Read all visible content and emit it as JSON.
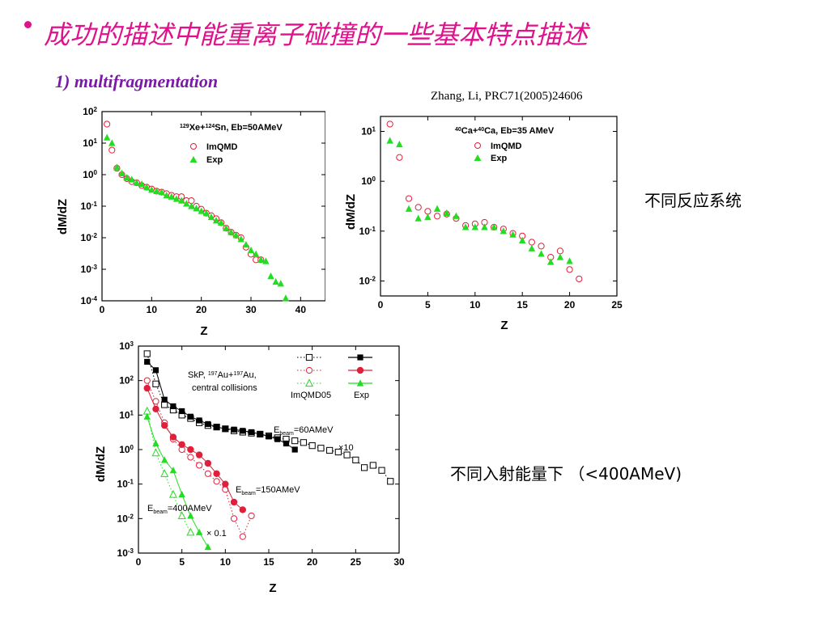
{
  "header": {
    "title": "成功的描述中能重离子碰撞的一些基本特点描述",
    "subtitle": "1) multifragmentation",
    "citation": "Zhang, Li,  PRC71(2005)24606",
    "note_top_right": "不同反应系统",
    "note_bottom_right": "不同入射能量下 （<400AMeV)"
  },
  "colors": {
    "title": "#e0118c",
    "subtitle": "#7a1ba8",
    "imqmd": "#e0203a",
    "exp": "#22dd22",
    "black": "#000000"
  },
  "chart_data": [
    {
      "type": "scatter",
      "title": "129Xe+124Sn,  Eb=50AMeV",
      "title_parts": {
        "a1": "129",
        "e1": "Xe+",
        "a2": "124",
        "e2": "Sn,  Eb=50AMeV"
      },
      "xlabel": "Z",
      "ylabel": "dM/dZ",
      "xlim": [
        0,
        45
      ],
      "ylim_log10": [
        -4,
        2
      ],
      "xticks": [
        "0",
        "10",
        "20",
        "30",
        "40"
      ],
      "yticks": [
        "10^-4",
        "10^-3",
        "10^-2",
        "10^-1",
        "10^0",
        "10^1",
        "10^2"
      ],
      "yscale": "log",
      "legend": {
        "position": "top-right",
        "entries": [
          "ImQMD",
          "Exp"
        ]
      },
      "series": [
        {
          "name": "ImQMD",
          "marker": "open-circle",
          "color": "#e0203a",
          "x": [
            1,
            2,
            3,
            4,
            5,
            6,
            7,
            8,
            9,
            10,
            11,
            12,
            13,
            14,
            15,
            16,
            17,
            18,
            19,
            20,
            21,
            22,
            23,
            24,
            25,
            26,
            27,
            28,
            29,
            30,
            31,
            32
          ],
          "y": [
            40,
            6,
            1.6,
            1.0,
            0.75,
            0.6,
            0.55,
            0.45,
            0.4,
            0.35,
            0.3,
            0.28,
            0.25,
            0.22,
            0.2,
            0.2,
            0.15,
            0.15,
            0.1,
            0.08,
            0.06,
            0.05,
            0.04,
            0.03,
            0.02,
            0.015,
            0.012,
            0.01,
            0.005,
            0.003,
            0.002,
            0.002
          ]
        },
        {
          "name": "Exp",
          "marker": "filled-triangle",
          "color": "#22dd22",
          "x": [
            1,
            2,
            3,
            4,
            5,
            6,
            7,
            8,
            9,
            10,
            11,
            12,
            13,
            14,
            15,
            16,
            17,
            18,
            19,
            20,
            21,
            22,
            23,
            24,
            25,
            26,
            27,
            28,
            29,
            30,
            31,
            32,
            33,
            34,
            35,
            36,
            37
          ],
          "y": [
            15,
            10,
            1.7,
            1.1,
            0.8,
            0.7,
            0.55,
            0.5,
            0.4,
            0.33,
            0.3,
            0.28,
            0.22,
            0.2,
            0.17,
            0.15,
            0.12,
            0.1,
            0.085,
            0.07,
            0.06,
            0.045,
            0.035,
            0.03,
            0.02,
            0.015,
            0.012,
            0.009,
            0.006,
            0.004,
            0.003,
            0.002,
            0.0018,
            0.0006,
            0.0004,
            0.00035,
            0.00012
          ]
        }
      ]
    },
    {
      "type": "scatter",
      "title": "40Ca+40Ca,  Eb=35  AMeV",
      "title_parts": {
        "a1": "40",
        "e1": "Ca+",
        "a2": "40",
        "e2": "Ca,  Eb=35  AMeV"
      },
      "xlabel": "Z",
      "ylabel": "dM/dZ",
      "xlim": [
        0,
        25
      ],
      "ylim_log10": [
        -2.3,
        1.3
      ],
      "xticks": [
        "0",
        "5",
        "10",
        "15",
        "20",
        "25"
      ],
      "yticks": [
        "10^-2",
        "10^-1",
        "10^0",
        "10^1"
      ],
      "yscale": "log",
      "legend": {
        "position": "top-right",
        "entries": [
          "ImQMD",
          "Exp"
        ]
      },
      "series": [
        {
          "name": "ImQMD",
          "marker": "open-circle",
          "color": "#e0203a",
          "x": [
            1,
            2,
            3,
            4,
            5,
            6,
            7,
            8,
            9,
            10,
            11,
            12,
            13,
            14,
            15,
            16,
            17,
            18,
            19,
            20,
            21
          ],
          "y": [
            14,
            3,
            0.45,
            0.3,
            0.25,
            0.2,
            0.22,
            0.18,
            0.13,
            0.14,
            0.15,
            0.12,
            0.11,
            0.09,
            0.08,
            0.06,
            0.05,
            0.03,
            0.04,
            0.017,
            0.011
          ]
        },
        {
          "name": "Exp",
          "marker": "filled-triangle",
          "color": "#22dd22",
          "x": [
            1,
            2,
            3,
            4,
            5,
            6,
            7,
            8,
            9,
            10,
            11,
            12,
            13,
            14,
            15,
            16,
            17,
            18,
            19,
            20
          ],
          "y": [
            6.5,
            5.5,
            0.28,
            0.18,
            0.19,
            0.28,
            0.23,
            0.2,
            0.12,
            0.12,
            0.12,
            0.12,
            0.1,
            0.085,
            0.065,
            0.045,
            0.035,
            0.024,
            0.03,
            0.025
          ]
        }
      ]
    },
    {
      "type": "line",
      "annotation": "SkP, 197Au+197Au, central collisions",
      "annotation_parts": {
        "l1a": "SkP, ",
        "a1": "197",
        "l1b": "Au+",
        "a2": "197",
        "l1c": "Au,",
        "l2": "central collisions"
      },
      "xlabel": "Z",
      "ylabel": "dM/dZ",
      "xlim": [
        0,
        30
      ],
      "ylim_log10": [
        -3,
        3
      ],
      "xticks": [
        "0",
        "5",
        "10",
        "15",
        "20",
        "25",
        "30"
      ],
      "yticks": [
        "10^-3",
        "10^-2",
        "10^-1",
        "10^0",
        "10^1",
        "10^2",
        "10^3"
      ],
      "yscale": "log",
      "legend": {
        "position": "top-right",
        "entries": [
          "ImQMD05",
          "Exp"
        ]
      },
      "labels": {
        "e60": "=60AMeV",
        "e150": "=150AMeV",
        "e400": "=400AMeV",
        "ebeam_e": "E",
        "ebeam_sub": "beam",
        "x10": "×10",
        "x01": "× 0.1"
      },
      "series": [
        {
          "name": "ImQMD05 60AMeV",
          "marker": "open-square",
          "color": "#000000",
          "style": "dotted",
          "x": [
            1,
            2,
            3,
            4,
            5,
            6,
            7,
            8,
            9,
            10,
            11,
            12,
            13,
            14,
            15,
            16,
            17,
            18,
            19,
            20,
            21,
            22,
            23,
            24,
            25,
            26,
            27,
            28,
            29
          ],
          "y": [
            600,
            80,
            20,
            14,
            10,
            8,
            6,
            5,
            4.5,
            4,
            3.5,
            3.2,
            3,
            2.8,
            2.5,
            2.2,
            2,
            1.8,
            1.6,
            1.3,
            1.1,
            0.95,
            0.85,
            0.7,
            0.5,
            0.3,
            0.35,
            0.25,
            0.12
          ]
        },
        {
          "name": "Exp 60AMeV",
          "marker": "filled-square",
          "color": "#000000",
          "style": "solid",
          "x": [
            1,
            2,
            3,
            4,
            5,
            6,
            7,
            8,
            9,
            10,
            11,
            12,
            13,
            14,
            15,
            16,
            17,
            18
          ],
          "y": [
            350,
            200,
            28,
            18,
            13,
            9,
            7,
            5.5,
            4.5,
            4,
            3.8,
            3.5,
            3.2,
            2.8,
            2.4,
            2,
            1.5,
            1
          ]
        },
        {
          "name": "ImQMD05 150AMeV",
          "marker": "open-circle",
          "color": "#e0203a",
          "style": "dotted",
          "x": [
            1,
            2,
            3,
            4,
            5,
            6,
            7,
            8,
            9,
            10,
            11,
            12,
            13
          ],
          "y": [
            100,
            25,
            6,
            2,
            1,
            0.6,
            0.35,
            0.2,
            0.12,
            0.07,
            0.01,
            0.003,
            0.012
          ]
        },
        {
          "name": "Exp 150AMeV",
          "marker": "filled-circle",
          "color": "#e0203a",
          "style": "solid",
          "x": [
            1,
            2,
            3,
            4,
            5,
            6,
            7,
            8,
            9,
            10,
            11,
            12
          ],
          "y": [
            60,
            15,
            5,
            2.3,
            1.4,
            1,
            0.7,
            0.4,
            0.2,
            0.1,
            0.03,
            0.018
          ]
        },
        {
          "name": "ImQMD05 400AMeV",
          "marker": "open-triangle",
          "color": "#22dd22",
          "style": "dotted",
          "x": [
            1,
            2,
            3,
            4,
            5,
            6
          ],
          "y": [
            13,
            0.8,
            0.2,
            0.05,
            0.012,
            0.004
          ]
        },
        {
          "name": "Exp 400AMeV",
          "marker": "filled-triangle",
          "color": "#22dd22",
          "style": "solid",
          "x": [
            1,
            2,
            3,
            4,
            5,
            6,
            7,
            8
          ],
          "y": [
            9,
            1.5,
            0.5,
            0.25,
            0.05,
            0.012,
            0.004,
            0.0015
          ]
        }
      ]
    }
  ]
}
